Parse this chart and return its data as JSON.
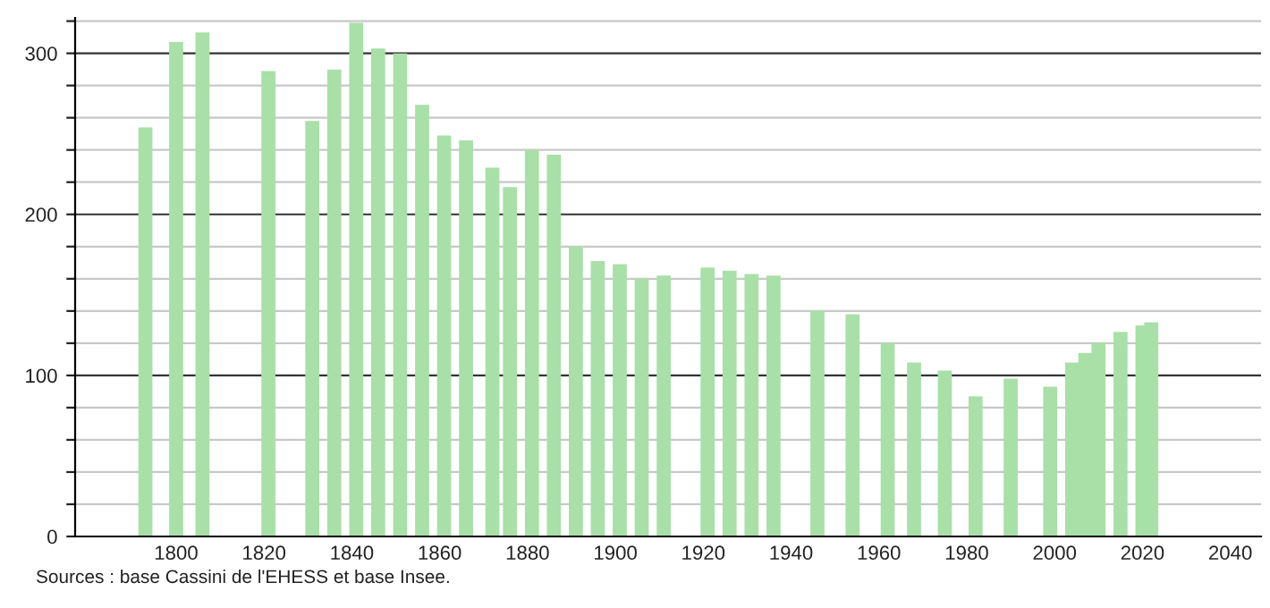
{
  "chart_data": {
    "type": "bar",
    "x": [
      1793,
      1800,
      1806,
      1821,
      1831,
      1836,
      1841,
      1846,
      1851,
      1856,
      1861,
      1866,
      1872,
      1876,
      1881,
      1886,
      1891,
      1896,
      1901,
      1906,
      1911,
      1921,
      1926,
      1931,
      1936,
      1946,
      1954,
      1962,
      1968,
      1975,
      1982,
      1990,
      1999,
      2004,
      2007,
      2010,
      2015,
      2020,
      2022
    ],
    "values": [
      254,
      307,
      313,
      289,
      258,
      290,
      319,
      303,
      300,
      268,
      249,
      246,
      229,
      217,
      240,
      237,
      180,
      171,
      169,
      160,
      162,
      167,
      165,
      163,
      162,
      140,
      138,
      120,
      108,
      103,
      87,
      98,
      93,
      108,
      114,
      120,
      127,
      131,
      133
    ],
    "color": "#a8e0a8",
    "xlim": [
      1777,
      2047
    ],
    "xticks": [
      1800,
      1820,
      1840,
      1860,
      1880,
      1900,
      1920,
      1940,
      1960,
      1980,
      2000,
      2020,
      2040
    ],
    "ylim": [
      0,
      322
    ],
    "yticks": [
      0,
      {
        "value": 20,
        "label": null
      },
      {
        "value": 40,
        "label": null
      },
      {
        "value": 60,
        "label": null
      },
      {
        "value": 80,
        "label": null
      },
      100,
      {
        "value": 120,
        "label": null
      },
      {
        "value": 140,
        "label": null
      },
      {
        "value": 160,
        "label": null
      },
      {
        "value": 180,
        "label": null
      },
      200,
      {
        "value": 220,
        "label": null
      },
      {
        "value": 240,
        "label": null
      },
      {
        "value": 260,
        "label": null
      },
      {
        "value": 280,
        "label": null
      },
      300,
      {
        "value": 320,
        "label": null
      }
    ],
    "grid": "y",
    "annotations": [
      "Sources : base Cassini de l'EHESS et base Insee."
    ]
  }
}
